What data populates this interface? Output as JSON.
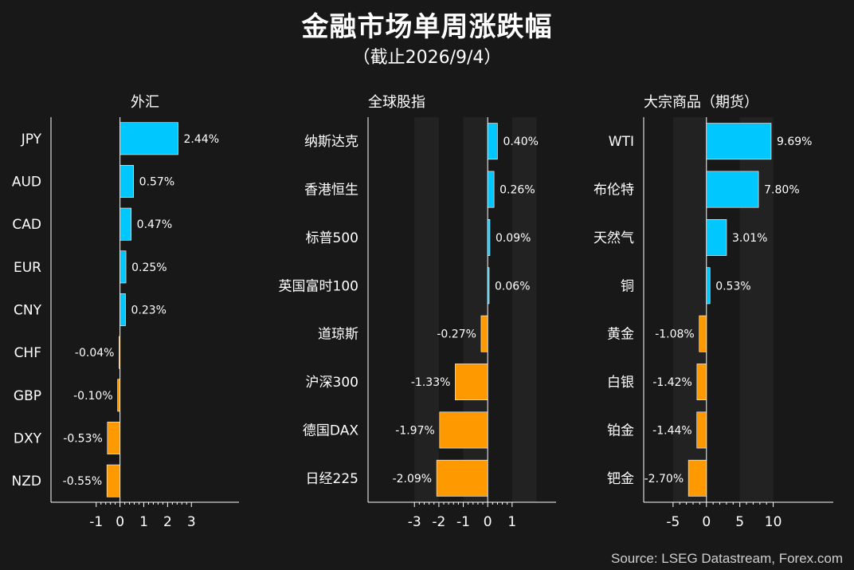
{
  "title": "金融市场单周涨跌幅",
  "subtitle": "（截止2026/9/4）",
  "source": "Source: LSEG Datastream, Forex.com",
  "colors": {
    "positive": "#00c8ff",
    "negative": "#ff9900",
    "background": "#181818"
  },
  "chart_data": [
    {
      "type": "bar",
      "orientation": "horizontal",
      "title": "外汇",
      "categories": [
        "JPY",
        "AUD",
        "CAD",
        "EUR",
        "CNY",
        "CHF",
        "GBP",
        "DXY",
        "NZD"
      ],
      "values": [
        2.44,
        0.57,
        0.47,
        0.25,
        0.23,
        -0.04,
        -0.1,
        -0.53,
        -0.55
      ],
      "value_labels": [
        "2.44%",
        "0.57%",
        "0.47%",
        "0.25%",
        "0.23%",
        "-0.04%",
        "-0.10%",
        "-0.53%",
        "-0.55%"
      ],
      "xlim": [
        -2.9,
        5
      ],
      "xticks": [
        -1,
        0,
        1,
        2,
        3
      ],
      "xtick_labels": [
        "-1",
        "0",
        "1",
        "2",
        "3"
      ]
    },
    {
      "type": "bar",
      "orientation": "horizontal",
      "title": "全球股指",
      "categories": [
        "纳斯达克",
        "香港恒生",
        "标普500",
        "英国富时100",
        "道琼斯",
        "沪深300",
        "德国DAX",
        "日经225"
      ],
      "values": [
        0.4,
        0.26,
        0.09,
        0.06,
        -0.27,
        -1.33,
        -1.97,
        -2.09
      ],
      "value_labels": [
        "0.40%",
        "0.26%",
        "0.09%",
        "0.06%",
        "-0.27%",
        "-1.33%",
        "-1.97%",
        "-2.09%"
      ],
      "xlim": [
        -4.9,
        2.8
      ],
      "xticks": [
        -3,
        -2,
        -1,
        0,
        1
      ],
      "xtick_labels": [
        "-3",
        "-2",
        "-1",
        "0",
        "1"
      ]
    },
    {
      "type": "bar",
      "orientation": "horizontal",
      "title": "大宗商品（期货）",
      "categories": [
        "WTI",
        "布伦特",
        "天然气",
        "铜",
        "黄金",
        "白银",
        "铂金",
        "钯金"
      ],
      "values": [
        9.69,
        7.8,
        3.01,
        0.53,
        -1.08,
        -1.42,
        -1.44,
        -2.7
      ],
      "value_labels": [
        "9.69%",
        "7.80%",
        "3.01%",
        "0.53%",
        "-1.08%",
        "-1.42%",
        "-1.44%",
        "-2.70%"
      ],
      "xlim": [
        -9.4,
        19
      ],
      "xticks": [
        -5,
        0,
        5,
        10
      ],
      "xtick_labels": [
        "-5",
        "0",
        "5",
        "10"
      ]
    }
  ]
}
